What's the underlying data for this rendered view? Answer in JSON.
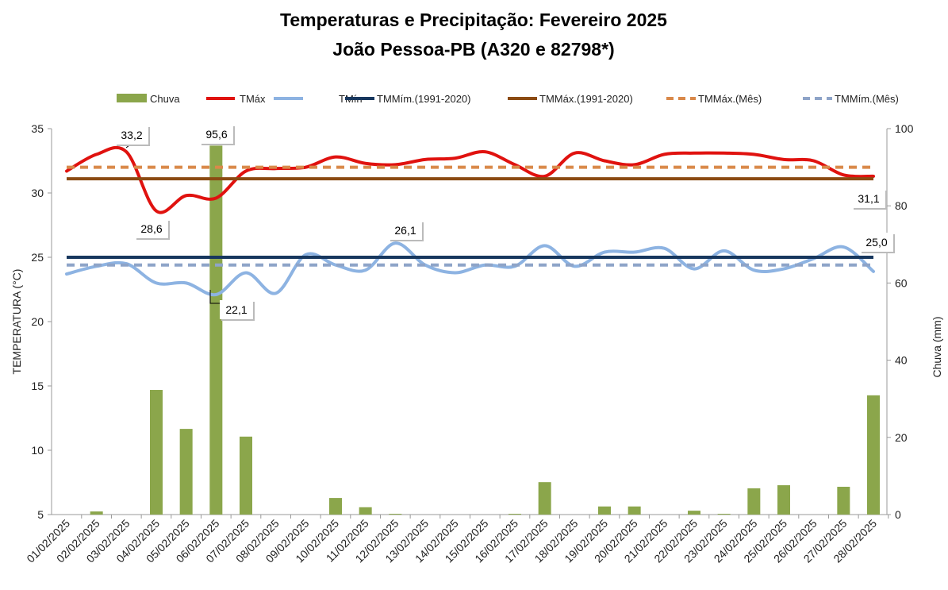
{
  "chart_data": {
    "type": "line",
    "title": [
      "Temperaturas e Precipitação: Fevereiro 2025",
      "João Pessoa-PB (A320 e 82798*)"
    ],
    "ylabel": "TEMPERATURA (°C)",
    "y2label": "Chuva (mm)",
    "ylim": [
      5,
      35
    ],
    "yticks": [
      "5",
      "10",
      "15",
      "20",
      "25",
      "30",
      "35"
    ],
    "y2lim": [
      0,
      100
    ],
    "y2ticks": [
      "0",
      "20",
      "40",
      "60",
      "80",
      "100"
    ],
    "legend_position": "top",
    "categories": [
      "01/02/2025",
      "02/02/2025",
      "03/02/2025",
      "04/02/2025",
      "05/02/2025",
      "06/02/2025",
      "07/02/2025",
      "08/02/2025",
      "09/02/2025",
      "10/02/2025",
      "11/02/2025",
      "12/02/2025",
      "13/02/2025",
      "14/02/2025",
      "15/02/2025",
      "16/02/2025",
      "17/02/2025",
      "18/02/2025",
      "19/02/2025",
      "20/02/2025",
      "21/02/2025",
      "22/02/2025",
      "23/02/2025",
      "24/02/2025",
      "25/02/2025",
      "26/02/2025",
      "27/02/2025",
      "28/02/2025"
    ],
    "series": [
      {
        "name": "Chuva",
        "type": "bar",
        "axis": "right",
        "color": "#8BA64B",
        "values": [
          0,
          0.8,
          0,
          32.3,
          22.2,
          95.6,
          20.2,
          0,
          0,
          4.3,
          1.9,
          0.2,
          0,
          0,
          0,
          0.2,
          8.4,
          0,
          2.1,
          2.1,
          0,
          1.0,
          0.2,
          6.8,
          7.6,
          0,
          7.2,
          30.9
        ]
      },
      {
        "name": "TMáx",
        "type": "line",
        "color": "#E0120F",
        "values": [
          31.7,
          33.0,
          33.2,
          28.6,
          29.8,
          29.6,
          31.7,
          31.9,
          32.0,
          32.8,
          32.3,
          32.2,
          32.6,
          32.7,
          33.2,
          32.2,
          31.3,
          33.1,
          32.5,
          32.2,
          33.0,
          33.1,
          33.1,
          33.0,
          32.6,
          32.5,
          31.4,
          31.3
        ]
      },
      {
        "name": "TMín",
        "type": "line",
        "color": "#8DB3E2",
        "values": [
          23.7,
          24.3,
          24.5,
          23.0,
          23.0,
          22.1,
          23.8,
          22.2,
          25.2,
          24.4,
          24.0,
          26.1,
          24.4,
          23.8,
          24.4,
          24.3,
          25.9,
          24.3,
          25.4,
          25.4,
          25.7,
          24.1,
          25.5,
          24.0,
          24.1,
          24.9,
          25.8,
          23.9
        ]
      },
      {
        "name": "TMMím.(1991-2020)",
        "type": "hline",
        "color": "#17375E",
        "value": 25.0
      },
      {
        "name": "TMMáx.(1991-2020)",
        "type": "hline",
        "color": "#8B4B13",
        "value": 31.1
      },
      {
        "name": "TMMáx.(Mês)",
        "type": "hline",
        "dashed": true,
        "color": "#D9894A",
        "value": 32.0
      },
      {
        "name": "TMMím.(Mês)",
        "type": "hline",
        "dashed": true,
        "color": "#8EA4C8",
        "value": 24.4
      }
    ],
    "annotations": [
      {
        "text": "33,2",
        "series": "TMáx",
        "day": 3
      },
      {
        "text": "28,6",
        "series": "TMáx",
        "day": 4
      },
      {
        "text": "95,6",
        "series": "Chuva",
        "day": 6
      },
      {
        "text": "22,1",
        "series": "TMín",
        "day": 6
      },
      {
        "text": "26,1",
        "series": "TMín",
        "day": 12
      },
      {
        "text": "31,1",
        "series": "TMMáx.(1991-2020)",
        "day": 28
      },
      {
        "text": "25,0",
        "series": "TMMím.(1991-2020)",
        "day": 28
      }
    ]
  }
}
